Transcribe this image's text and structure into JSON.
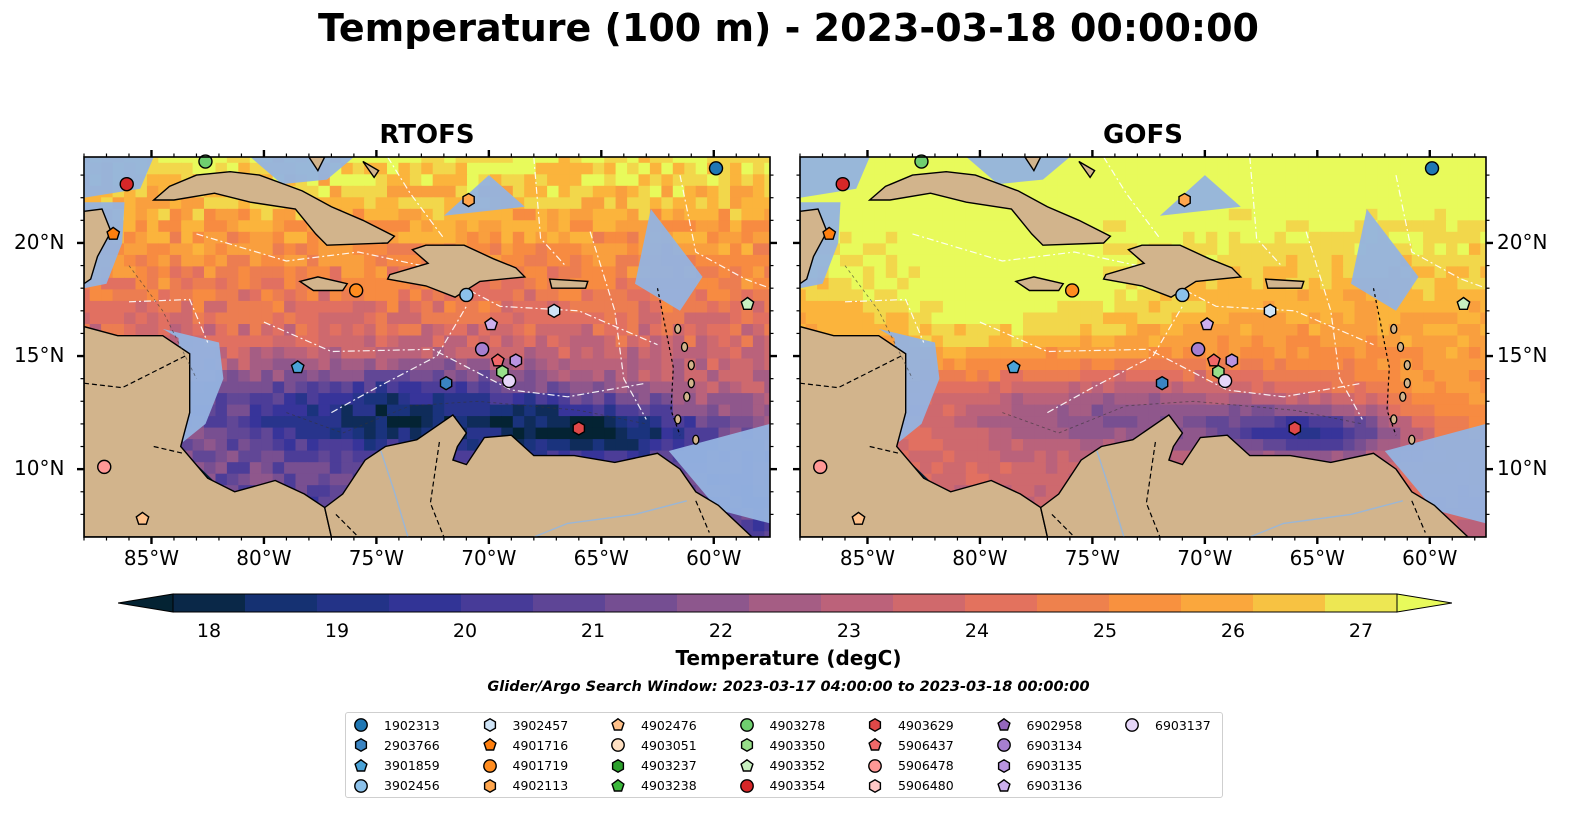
{
  "title": "Temperature (100 m) - 2023-03-18 00:00:00",
  "panels": [
    {
      "title": "RTOFS",
      "palette": "rtofs"
    },
    {
      "title": "GOFS",
      "palette": "gofs"
    }
  ],
  "axes": {
    "lon_ticks": [
      "85°W",
      "80°W",
      "75°W",
      "70°W",
      "65°W",
      "60°W"
    ],
    "lat_ticks": [
      "20°N",
      "15°N",
      "10°N"
    ],
    "lon_values": [
      -85,
      -80,
      -75,
      -70,
      -65,
      -60
    ],
    "lat_values": [
      20,
      15,
      10
    ],
    "lon_range": [
      -88.0,
      -57.5
    ],
    "lat_range": [
      7.0,
      23.8
    ]
  },
  "colorbar": {
    "label": "Temperature (degC)",
    "tick_labels": [
      "18",
      "19",
      "20",
      "21",
      "22",
      "23",
      "24",
      "25",
      "26",
      "27"
    ],
    "min": 18,
    "max": 27,
    "step": 0.5,
    "extend": "both",
    "colormap": "thermal"
  },
  "search_window": "Glider/Argo Search Window: 2023-03-17 04:00:00 to 2023-03-18 00:00:00",
  "colors": {
    "land": "#d2b48c",
    "shelf_water": "#93b3e0",
    "deep_cold": "#03243c"
  },
  "legend": {
    "columns": 7,
    "items": [
      {
        "id": "1902313",
        "marker": "circle",
        "color": "#1f77b4"
      },
      {
        "id": "2903766",
        "marker": "hexagon",
        "color": "#3a84c2"
      },
      {
        "id": "3901859",
        "marker": "pentagon",
        "color": "#4aa3d8"
      },
      {
        "id": "3902456",
        "marker": "circle",
        "color": "#8cc1ea"
      },
      {
        "id": "3902457",
        "marker": "hexagon",
        "color": "#cfe4f7"
      },
      {
        "id": "4901716",
        "marker": "pentagon",
        "color": "#ff7f0e"
      },
      {
        "id": "4901719",
        "marker": "circle",
        "color": "#ff8c1f"
      },
      {
        "id": "4902113",
        "marker": "hexagon",
        "color": "#ffa64d"
      },
      {
        "id": "4902476",
        "marker": "pentagon",
        "color": "#ffc18a"
      },
      {
        "id": "4903051",
        "marker": "circle",
        "color": "#ffe0c2"
      },
      {
        "id": "4903237",
        "marker": "hexagon",
        "color": "#2ca02c"
      },
      {
        "id": "4903238",
        "marker": "pentagon",
        "color": "#3cb83c"
      },
      {
        "id": "4903278",
        "marker": "circle",
        "color": "#6fcf6f"
      },
      {
        "id": "4903350",
        "marker": "hexagon",
        "color": "#98df8a"
      },
      {
        "id": "4903352",
        "marker": "pentagon",
        "color": "#c8f0c0"
      },
      {
        "id": "4903354",
        "marker": "circle",
        "color": "#d62728"
      },
      {
        "id": "4903629",
        "marker": "hexagon",
        "color": "#e04848"
      },
      {
        "id": "5906437",
        "marker": "pentagon",
        "color": "#f06868"
      },
      {
        "id": "5906478",
        "marker": "circle",
        "color": "#ff9896"
      },
      {
        "id": "5906480",
        "marker": "hexagon",
        "color": "#ffc8c6"
      },
      {
        "id": "6902958",
        "marker": "pentagon",
        "color": "#9467bd"
      },
      {
        "id": "6903134",
        "marker": "circle",
        "color": "#a67fd0"
      },
      {
        "id": "6903135",
        "marker": "hexagon",
        "color": "#b994e0"
      },
      {
        "id": "6903136",
        "marker": "pentagon",
        "color": "#cdb0ee"
      },
      {
        "id": "6903137",
        "marker": "circle",
        "color": "#e6d6f8"
      }
    ]
  },
  "platforms": [
    {
      "id": "1902313",
      "lon": -59.9,
      "lat": 23.3
    },
    {
      "id": "4903278",
      "lon": -82.6,
      "lat": 23.6
    },
    {
      "id": "4903354",
      "lon": -86.1,
      "lat": 22.6
    },
    {
      "id": "4901716",
      "lon": -86.7,
      "lat": 20.4
    },
    {
      "id": "4902113",
      "lon": -70.9,
      "lat": 21.9
    },
    {
      "id": "4901719",
      "lon": -75.9,
      "lat": 17.9
    },
    {
      "id": "3902456",
      "lon": -71.0,
      "lat": 17.7
    },
    {
      "id": "3902457",
      "lon": -67.1,
      "lat": 17.0
    },
    {
      "id": "4903352",
      "lon": -58.5,
      "lat": 17.3
    },
    {
      "id": "6903136",
      "lon": -69.9,
      "lat": 16.4
    },
    {
      "id": "6903134",
      "lon": -70.3,
      "lat": 15.3
    },
    {
      "id": "5906437",
      "lon": -69.6,
      "lat": 14.8
    },
    {
      "id": "6903135",
      "lon": -68.8,
      "lat": 14.8
    },
    {
      "id": "4903350",
      "lon": -69.4,
      "lat": 14.3
    },
    {
      "id": "6903137",
      "lon": -69.1,
      "lat": 13.9
    },
    {
      "id": "3901859",
      "lon": -78.5,
      "lat": 14.5
    },
    {
      "id": "2903766",
      "lon": -71.9,
      "lat": 13.8
    },
    {
      "id": "4903629",
      "lon": -66.0,
      "lat": 11.8
    },
    {
      "id": "5906478",
      "lon": -87.1,
      "lat": 10.1
    },
    {
      "id": "4902476",
      "lon": -85.4,
      "lat": 7.8
    }
  ]
}
